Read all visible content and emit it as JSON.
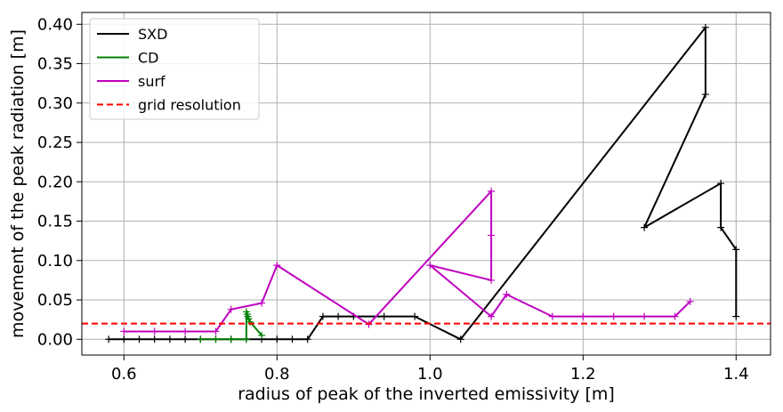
{
  "chart_data": {
    "type": "line",
    "title": "",
    "xlabel": "radius of peak of the inverted emissivity [m]",
    "ylabel": "movement of the peak radiation [m]",
    "xlim": [
      0.545,
      1.445
    ],
    "ylim": [
      -0.02,
      0.415
    ],
    "xticks": [
      0.6,
      0.8,
      1.0,
      1.2,
      1.4
    ],
    "xtick_labels": [
      "0.6",
      "0.8",
      "1.0",
      "1.2",
      "1.4"
    ],
    "yticks": [
      0.0,
      0.05,
      0.1,
      0.15,
      0.2,
      0.25,
      0.3,
      0.35,
      0.4
    ],
    "ytick_labels": [
      "0.00",
      "0.05",
      "0.10",
      "0.15",
      "0.20",
      "0.25",
      "0.30",
      "0.35",
      "0.40"
    ],
    "grid": true,
    "legend_position": "top-left",
    "series": [
      {
        "name": "SXD",
        "color": "#000000",
        "marker": "+",
        "x": [
          0.58,
          0.6,
          0.62,
          0.64,
          0.66,
          0.68,
          0.7,
          0.72,
          0.74,
          0.76,
          0.78,
          0.8,
          0.82,
          0.84,
          0.86,
          0.88,
          0.9,
          0.94,
          0.98,
          1.04,
          1.36,
          1.36,
          1.28,
          1.38,
          1.38,
          1.4,
          1.4
        ],
        "y": [
          0.0,
          0.0,
          0.0,
          0.0,
          0.0,
          0.0,
          0.0,
          0.0,
          0.0,
          0.0,
          0.0,
          0.0,
          0.0,
          0.0,
          0.029,
          0.029,
          0.029,
          0.029,
          0.029,
          0.0,
          0.396,
          0.311,
          0.142,
          0.198,
          0.142,
          0.114,
          0.029
        ]
      },
      {
        "name": "CD",
        "color": "#008000",
        "marker": "+",
        "x": [
          0.7,
          0.72,
          0.74,
          0.76,
          0.76,
          0.761,
          0.762,
          0.763,
          0.765,
          0.78
        ],
        "y": [
          0.0,
          0.0,
          0.0,
          0.0,
          0.035,
          0.032,
          0.029,
          0.026,
          0.022,
          0.005
        ]
      },
      {
        "name": "surf",
        "color": "#bf00bf",
        "marker": "+",
        "x": [
          0.6,
          0.64,
          0.68,
          0.72,
          0.74,
          0.78,
          0.8,
          0.92,
          1.08,
          1.08,
          1.08,
          1.0,
          1.08,
          1.1,
          1.16,
          1.2,
          1.24,
          1.28,
          1.32,
          1.34
        ],
        "y": [
          0.01,
          0.01,
          0.01,
          0.01,
          0.038,
          0.046,
          0.094,
          0.019,
          0.188,
          0.132,
          0.075,
          0.094,
          0.029,
          0.057,
          0.029,
          0.029,
          0.029,
          0.029,
          0.029,
          0.048
        ]
      },
      {
        "name": "grid resolution",
        "color": "#ff0000",
        "style": "dashed",
        "y_constant": 0.02
      }
    ]
  }
}
